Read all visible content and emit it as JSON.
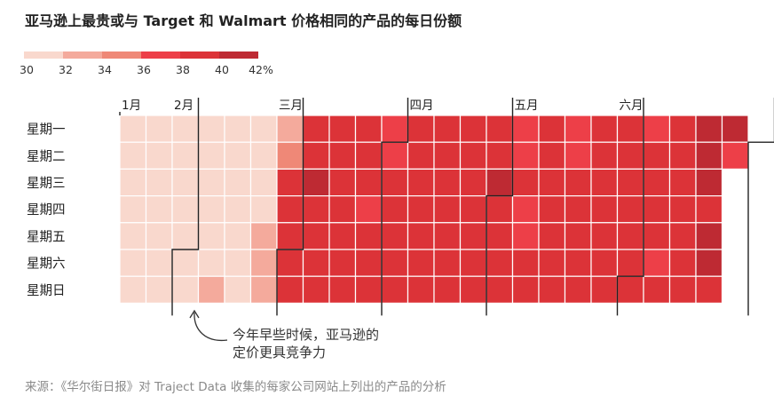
{
  "title": "亚马逊上最贵或与 Target 和 Walmart 价格相同的产品的每日份额",
  "source": "来源：《华尔街日报》对 Traject Data 收集的每家公司网站上列出的产品的分析",
  "annotation": {
    "line1": "今年早些时候，亚马逊的",
    "line2": "定价更具竞争力"
  },
  "colors": {
    "scale": [
      "#f9d8cd",
      "#f4aa9c",
      "#ef8877",
      "#ed3f48",
      "#dc3338",
      "#be2a33"
    ],
    "grid_line": "#ffffff",
    "month_boundary": "#222222"
  },
  "chart_data": {
    "type": "heatmap",
    "title": "亚马逊上最贵或与 Target 和 Walmart 价格相同的产品的每日份额",
    "legend": {
      "tick_labels": [
        "30",
        "32",
        "34",
        "36",
        "38",
        "40",
        "42%"
      ],
      "bins": [
        [
          30,
          32
        ],
        [
          32,
          34
        ],
        [
          34,
          36
        ],
        [
          36,
          38
        ],
        [
          38,
          40
        ],
        [
          40,
          42
        ]
      ]
    },
    "weekday_labels": [
      "星期一",
      "星期二",
      "星期三",
      "星期四",
      "星期五",
      "星期六",
      "星期日"
    ],
    "month_labels": [
      {
        "label": "1月",
        "week": 0
      },
      {
        "label": "2月",
        "week": 2
      },
      {
        "label": "三月",
        "week": 6
      },
      {
        "label": "四月",
        "week": 11
      },
      {
        "label": "五月",
        "week": 15
      },
      {
        "label": "六月",
        "week": 19
      }
    ],
    "month_boundaries": [
      {
        "week": 2,
        "start_day": 5
      },
      {
        "week": 6,
        "start_day": 5
      },
      {
        "week": 10,
        "start_day": 1
      },
      {
        "week": 14,
        "start_day": 3
      },
      {
        "week": 19,
        "start_day": 6
      },
      {
        "week": 24,
        "start_day": 1
      }
    ],
    "weeks": 24,
    "first_day_offset": 0,
    "total_days": 163,
    "values": [
      [
        31,
        31,
        31,
        31,
        31,
        31,
        31
      ],
      [
        31,
        31,
        31,
        31,
        31,
        31,
        31
      ],
      [
        31,
        31,
        31,
        31,
        31,
        31,
        31
      ],
      [
        31,
        31,
        31,
        31,
        31,
        31,
        33
      ],
      [
        31,
        31,
        31,
        31,
        31,
        31,
        31
      ],
      [
        31,
        31,
        31,
        31,
        33,
        33,
        33
      ],
      [
        33,
        35,
        39,
        39,
        39,
        39,
        39
      ],
      [
        39,
        39,
        41,
        39,
        39,
        39,
        39
      ],
      [
        39,
        39,
        39,
        39,
        39,
        39,
        39
      ],
      [
        39,
        39,
        39,
        37,
        39,
        39,
        39
      ],
      [
        37,
        37,
        39,
        39,
        39,
        39,
        39
      ],
      [
        39,
        39,
        39,
        39,
        39,
        39,
        39
      ],
      [
        39,
        39,
        39,
        39,
        39,
        39,
        39
      ],
      [
        39,
        39,
        39,
        39,
        39,
        39,
        39
      ],
      [
        39,
        39,
        41,
        39,
        39,
        39,
        39
      ],
      [
        37,
        37,
        39,
        37,
        37,
        39,
        39
      ],
      [
        39,
        39,
        39,
        39,
        39,
        39,
        39
      ],
      [
        37,
        37,
        39,
        39,
        39,
        39,
        39
      ],
      [
        39,
        39,
        39,
        39,
        39,
        39,
        39
      ],
      [
        39,
        39,
        39,
        39,
        39,
        39,
        39
      ],
      [
        37,
        39,
        39,
        39,
        39,
        37,
        39
      ],
      [
        39,
        39,
        39,
        39,
        39,
        39,
        39
      ],
      [
        41,
        41,
        41,
        39,
        41,
        41,
        39
      ],
      [
        41,
        37,
        null,
        null,
        null,
        null,
        null
      ]
    ]
  }
}
